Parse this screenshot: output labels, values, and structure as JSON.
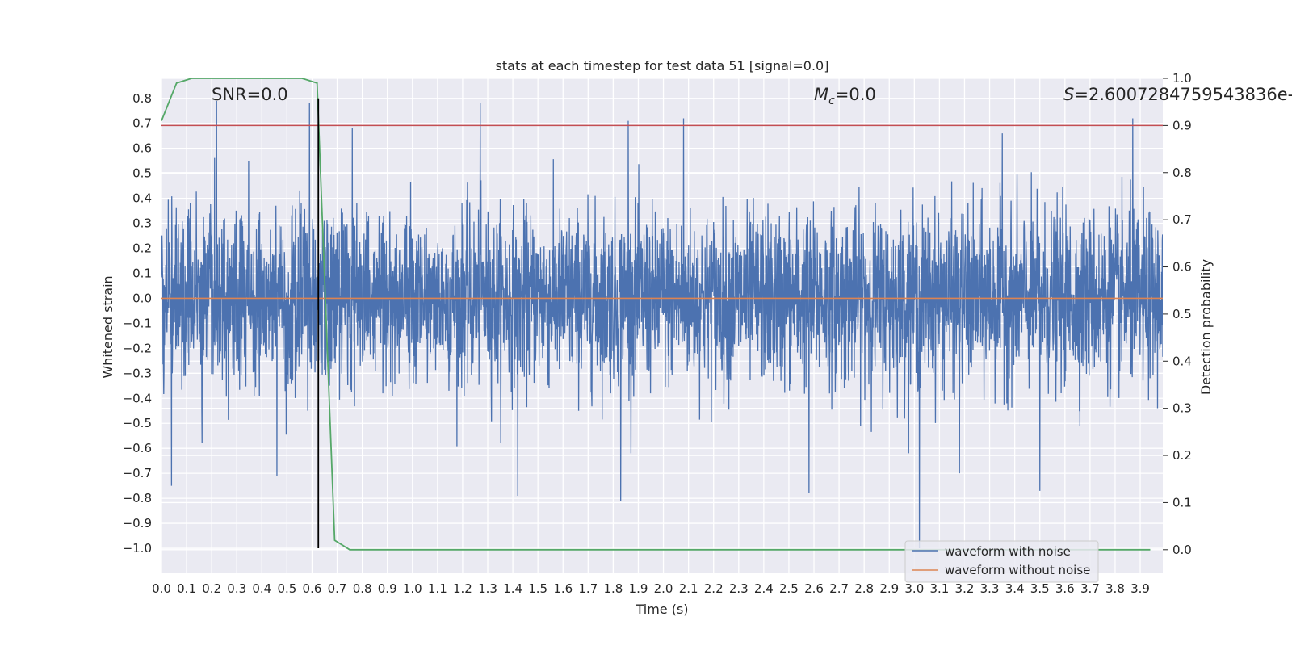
{
  "chart_data": {
    "type": "line",
    "title": "stats at each timestep for test data 51 [signal=0.0]",
    "xlabel": "Time (s)",
    "ylabel": "Whitened strain",
    "y2label": "Detection probability",
    "xlim": [
      0.0,
      3.99
    ],
    "ylim": [
      -1.1,
      0.88
    ],
    "y2lim": [
      -0.05,
      1.0
    ],
    "x_ticks": [
      "0.0",
      "0.1",
      "0.2",
      "0.3",
      "0.4",
      "0.5",
      "0.6",
      "0.7",
      "0.8",
      "0.9",
      "1.0",
      "1.1",
      "1.2",
      "1.3",
      "1.4",
      "1.5",
      "1.6",
      "1.7",
      "1.8",
      "1.9",
      "2.0",
      "2.1",
      "2.2",
      "2.3",
      "2.4",
      "2.5",
      "2.6",
      "2.7",
      "2.8",
      "2.9",
      "3.0",
      "3.1",
      "3.2",
      "3.3",
      "3.4",
      "3.5",
      "3.6",
      "3.7",
      "3.8",
      "3.9"
    ],
    "y_ticks": [
      "0.8",
      "0.7",
      "0.6",
      "0.5",
      "0.4",
      "0.3",
      "0.2",
      "0.1",
      "0.0",
      "−0.1",
      "−0.2",
      "−0.3",
      "−0.4",
      "−0.5",
      "−0.6",
      "−0.7",
      "−0.8",
      "−0.9",
      "−1.0"
    ],
    "y2_ticks": [
      "1.0",
      "0.9",
      "0.8",
      "0.7",
      "0.6",
      "0.5",
      "0.4",
      "0.3",
      "0.2",
      "0.1",
      "0.0"
    ],
    "annotations": {
      "snr": "SNR=0.0",
      "mc_symbol": "M",
      "mc_sub": "c",
      "mc_value": "=0.0",
      "s_symbol": "S",
      "s_value": "=2.6007284759543836e-"
    },
    "series": [
      {
        "name": "waveform with noise",
        "axis": "left",
        "color": "#4c72b0",
        "description_points": "dense noise, approx ±0.35 amplitude with spikes to 0.79 and −1.0",
        "peak_spikes": [
          {
            "x": 0.22,
            "y": 0.79
          },
          {
            "x": 0.59,
            "y": 0.78
          },
          {
            "x": 0.76,
            "y": 0.68
          },
          {
            "x": 1.27,
            "y": 0.78
          },
          {
            "x": 1.86,
            "y": 0.71
          },
          {
            "x": 2.08,
            "y": 0.72
          },
          {
            "x": 3.35,
            "y": 0.66
          },
          {
            "x": 3.87,
            "y": 0.72
          },
          {
            "x": 0.04,
            "y": -0.75
          },
          {
            "x": 0.46,
            "y": -0.71
          },
          {
            "x": 1.42,
            "y": -0.79
          },
          {
            "x": 1.83,
            "y": -0.81
          },
          {
            "x": 2.58,
            "y": -0.78
          },
          {
            "x": 3.02,
            "y": -1.0
          },
          {
            "x": 3.18,
            "y": -0.7
          },
          {
            "x": 3.5,
            "y": -0.77
          }
        ]
      },
      {
        "name": "waveform without noise",
        "axis": "left",
        "color": "#dd8452",
        "x": [
          0.0,
          3.99
        ],
        "y": [
          0.0,
          0.0
        ]
      },
      {
        "name": "",
        "axis": "right",
        "color": "#55a868",
        "x": [
          0.0,
          0.06,
          0.12,
          0.5,
          0.56,
          0.62,
          0.69,
          0.75,
          3.94
        ],
        "y": [
          0.91,
          0.99,
          1.0,
          1.0,
          1.0,
          0.99,
          0.02,
          0.0,
          0.0
        ]
      }
    ],
    "threshold_line": {
      "axis": "right",
      "value": 0.9,
      "color": "#c44e52"
    },
    "event_line": {
      "x": 0.625,
      "y_from": -1.0,
      "y_to": 0.8,
      "color": "#000000"
    },
    "legend": {
      "placement": "bottom-right",
      "entries": [
        "waveform with noise",
        "waveform without noise"
      ]
    },
    "grid": true,
    "background": "#eaeaf2"
  }
}
